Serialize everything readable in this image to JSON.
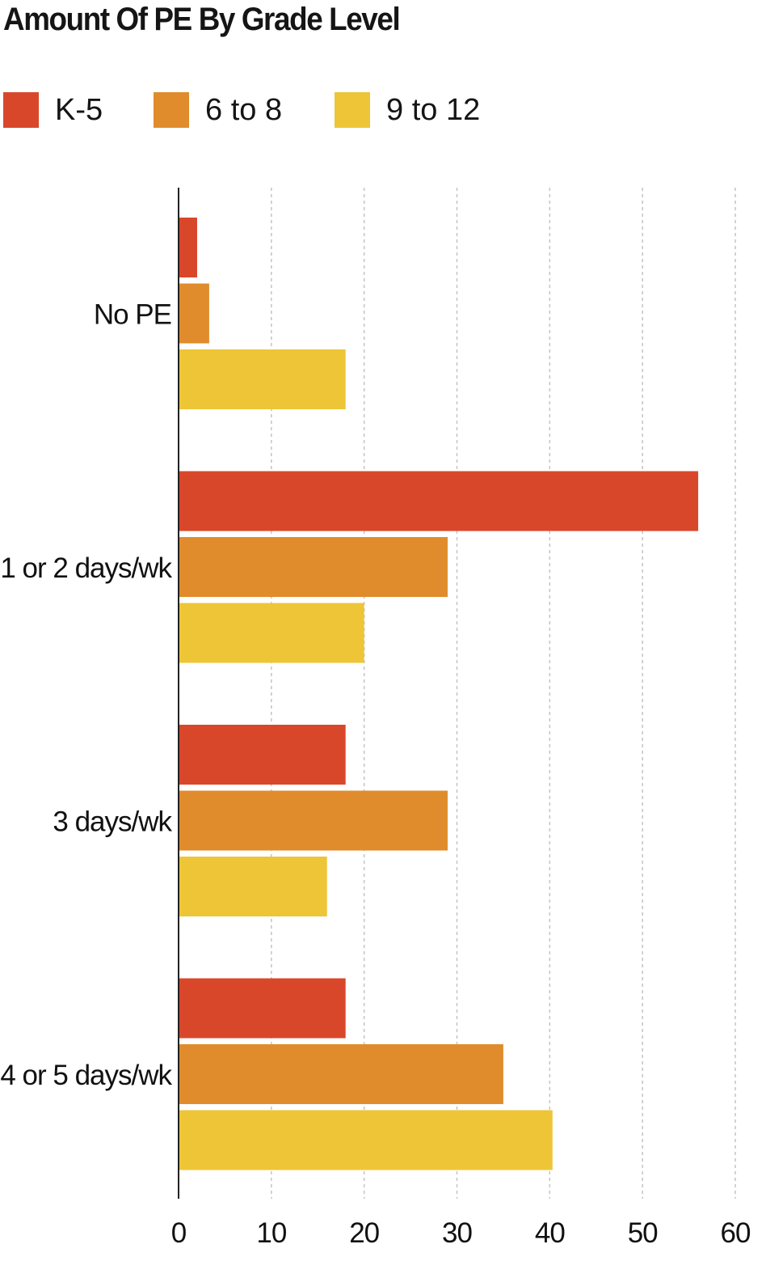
{
  "chart_data": {
    "type": "bar",
    "orientation": "horizontal",
    "title": "Amount Of PE By Grade Level",
    "categories": [
      "No PE",
      "1 or 2 days/wk",
      "3 days/wk",
      "4 or 5 days/wk"
    ],
    "series": [
      {
        "name": "K-5",
        "color": "#d9472b",
        "values": [
          2,
          56,
          18,
          18
        ]
      },
      {
        "name": "6 to 8",
        "color": "#e08c2c",
        "values": [
          3.3,
          29,
          29,
          35
        ]
      },
      {
        "name": "9 to 12",
        "color": "#edc537",
        "values": [
          18,
          20,
          16,
          40.3
        ]
      }
    ],
    "xlim": [
      0,
      60
    ],
    "xticks": [
      0,
      10,
      20,
      30,
      40,
      50,
      60
    ],
    "grid": true,
    "legend_position": "top-left"
  }
}
